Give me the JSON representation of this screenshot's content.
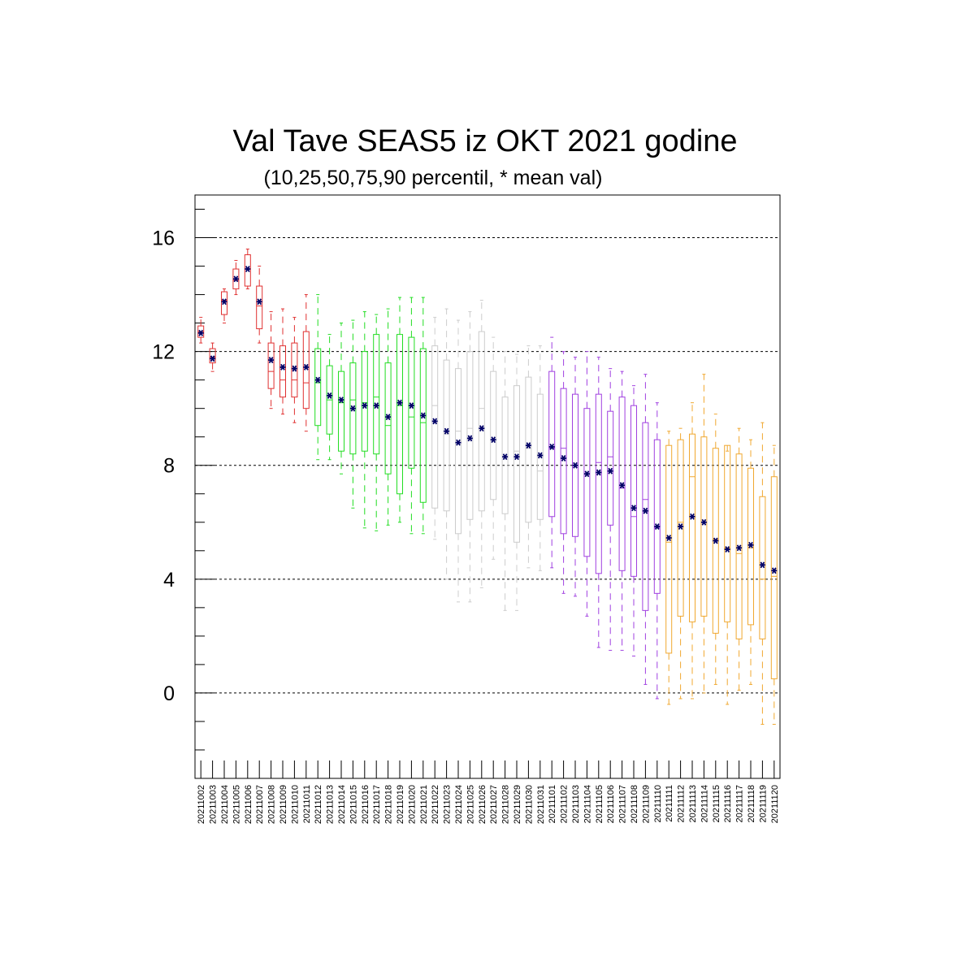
{
  "chart_data": {
    "type": "boxplot",
    "title": "Val Tave SEAS5 iz OKT 2021 godine",
    "subtitle": "(10,25,50,75,90 percentil, * mean val)",
    "ylim": [
      -3,
      17.5
    ],
    "yticks": [
      0,
      4,
      8,
      12,
      16
    ],
    "grid": "horizontal-dashed",
    "mean_marker_color": "#000066",
    "categories": [
      "20211002",
      "20211003",
      "20211004",
      "20211005",
      "20211006",
      "20211007",
      "20211008",
      "20211009",
      "20211010",
      "20211011",
      "20211012",
      "20211013",
      "20211014",
      "20211015",
      "20211016",
      "20211017",
      "20211018",
      "20211019",
      "20211020",
      "20211021",
      "20211022",
      "20211023",
      "20211024",
      "20211025",
      "20211026",
      "20211027",
      "20211028",
      "20211029",
      "20211030",
      "20211031",
      "20211101",
      "20211102",
      "20211103",
      "20211104",
      "20211105",
      "20211106",
      "20211107",
      "20211108",
      "20211109",
      "20211110",
      "20211111",
      "20211112",
      "20211113",
      "20211114",
      "20211115",
      "20211116",
      "20211117",
      "20211118",
      "20211119",
      "20211120"
    ],
    "colors": [
      "#e03030",
      "#e03030",
      "#e03030",
      "#e03030",
      "#e03030",
      "#e03030",
      "#e03030",
      "#e03030",
      "#e03030",
      "#e03030",
      "#22dd22",
      "#22dd22",
      "#22dd22",
      "#22dd22",
      "#22dd22",
      "#22dd22",
      "#22dd22",
      "#22dd22",
      "#22dd22",
      "#22dd22",
      "#cccccc",
      "#cccccc",
      "#cccccc",
      "#cccccc",
      "#cccccc",
      "#cccccc",
      "#cccccc",
      "#cccccc",
      "#cccccc",
      "#cccccc",
      "#a040e0",
      "#a040e0",
      "#a040e0",
      "#a040e0",
      "#a040e0",
      "#a040e0",
      "#a040e0",
      "#a040e0",
      "#a040e0",
      "#a040e0",
      "#f0a830",
      "#f0a830",
      "#f0a830",
      "#f0a830",
      "#f0a830",
      "#f0a830",
      "#f0a830",
      "#f0a830",
      "#f0a830",
      "#f0a830"
    ],
    "p10": [
      12.3,
      11.3,
      13.0,
      14.0,
      14.2,
      12.3,
      10.0,
      9.8,
      9.5,
      9.2,
      8.2,
      8.2,
      7.7,
      6.5,
      5.8,
      5.7,
      5.9,
      6.0,
      5.6,
      5.6,
      5.4,
      4.0,
      3.2,
      3.2,
      3.7,
      4.7,
      2.9,
      2.9,
      4.4,
      4.3,
      4.4,
      3.5,
      3.4,
      2.7,
      1.6,
      1.5,
      1.5,
      1.3,
      0.3,
      -0.2,
      -0.4,
      -0.2,
      -0.2,
      0.0,
      0.3,
      -0.4,
      0.1,
      0.3,
      -1.1,
      -1.1
    ],
    "p25": [
      12.5,
      11.6,
      13.3,
      14.2,
      14.3,
      12.8,
      10.7,
      10.4,
      10.4,
      10.0,
      9.4,
      9.1,
      8.5,
      8.4,
      8.5,
      8.4,
      7.7,
      7.0,
      7.9,
      6.7,
      6.5,
      6.4,
      5.6,
      6.1,
      6.4,
      6.8,
      6.3,
      5.3,
      6.0,
      6.1,
      6.2,
      5.6,
      5.5,
      4.8,
      4.2,
      5.9,
      4.3,
      4.1,
      2.9,
      3.5,
      1.4,
      2.7,
      2.5,
      2.7,
      2.1,
      2.5,
      1.9,
      2.4,
      1.9,
      0.5
    ],
    "p50": [
      12.7,
      11.8,
      13.8,
      14.5,
      14.9,
      13.6,
      11.3,
      11.0,
      11.0,
      10.9,
      10.9,
      10.3,
      10.2,
      10.3,
      10.2,
      10.4,
      9.4,
      10.1,
      9.7,
      9.5,
      10.1,
      9.1,
      9.2,
      9.3,
      10.0,
      8.9,
      8.3,
      8.5,
      8.6,
      7.8,
      8.6,
      8.6,
      8.0,
      7.7,
      8.1,
      8.3,
      7.2,
      6.2,
      6.8,
      5.8,
      5.3,
      6.0,
      7.6,
      6.0,
      5.4,
      5.1,
      4.9,
      5.1,
      4.0,
      4.1
    ],
    "p75": [
      12.9,
      12.1,
      14.1,
      14.9,
      15.4,
      14.3,
      12.3,
      12.2,
      12.3,
      12.7,
      12.1,
      11.5,
      11.3,
      11.6,
      12.0,
      12.6,
      11.6,
      12.6,
      12.5,
      12.1,
      12.2,
      11.7,
      11.4,
      12.0,
      12.7,
      11.3,
      10.4,
      10.8,
      11.1,
      10.5,
      11.3,
      10.7,
      10.5,
      10.0,
      10.5,
      9.9,
      10.4,
      10.1,
      9.5,
      8.9,
      8.7,
      8.9,
      9.1,
      9.0,
      8.6,
      8.7,
      8.4,
      7.9,
      6.9,
      7.6
    ],
    "p90": [
      13.2,
      12.3,
      14.2,
      15.2,
      15.6,
      15.0,
      13.4,
      13.5,
      13.2,
      14.0,
      14.0,
      12.6,
      13.0,
      13.1,
      13.4,
      13.3,
      13.5,
      13.9,
      13.9,
      13.9,
      13.2,
      13.5,
      13.1,
      13.4,
      13.8,
      12.5,
      12.0,
      11.9,
      12.2,
      12.2,
      12.5,
      12.0,
      11.8,
      12.0,
      11.8,
      11.4,
      11.3,
      10.8,
      11.2,
      10.2,
      9.2,
      9.3,
      10.2,
      11.2,
      9.8,
      8.5,
      9.3,
      8.9,
      9.5,
      8.7
    ],
    "mean": [
      12.65,
      11.75,
      13.75,
      14.55,
      14.9,
      13.75,
      11.7,
      11.45,
      11.4,
      11.45,
      11.0,
      10.45,
      10.3,
      10.0,
      10.1,
      10.1,
      9.7,
      10.2,
      10.1,
      9.75,
      9.55,
      9.2,
      8.8,
      8.95,
      9.3,
      8.9,
      8.3,
      8.3,
      8.7,
      8.35,
      8.65,
      8.25,
      8.0,
      7.7,
      7.75,
      7.8,
      7.3,
      6.5,
      6.4,
      5.85,
      5.45,
      5.85,
      6.2,
      6.0,
      5.35,
      5.05,
      5.1,
      5.2,
      4.5,
      4.3
    ]
  }
}
